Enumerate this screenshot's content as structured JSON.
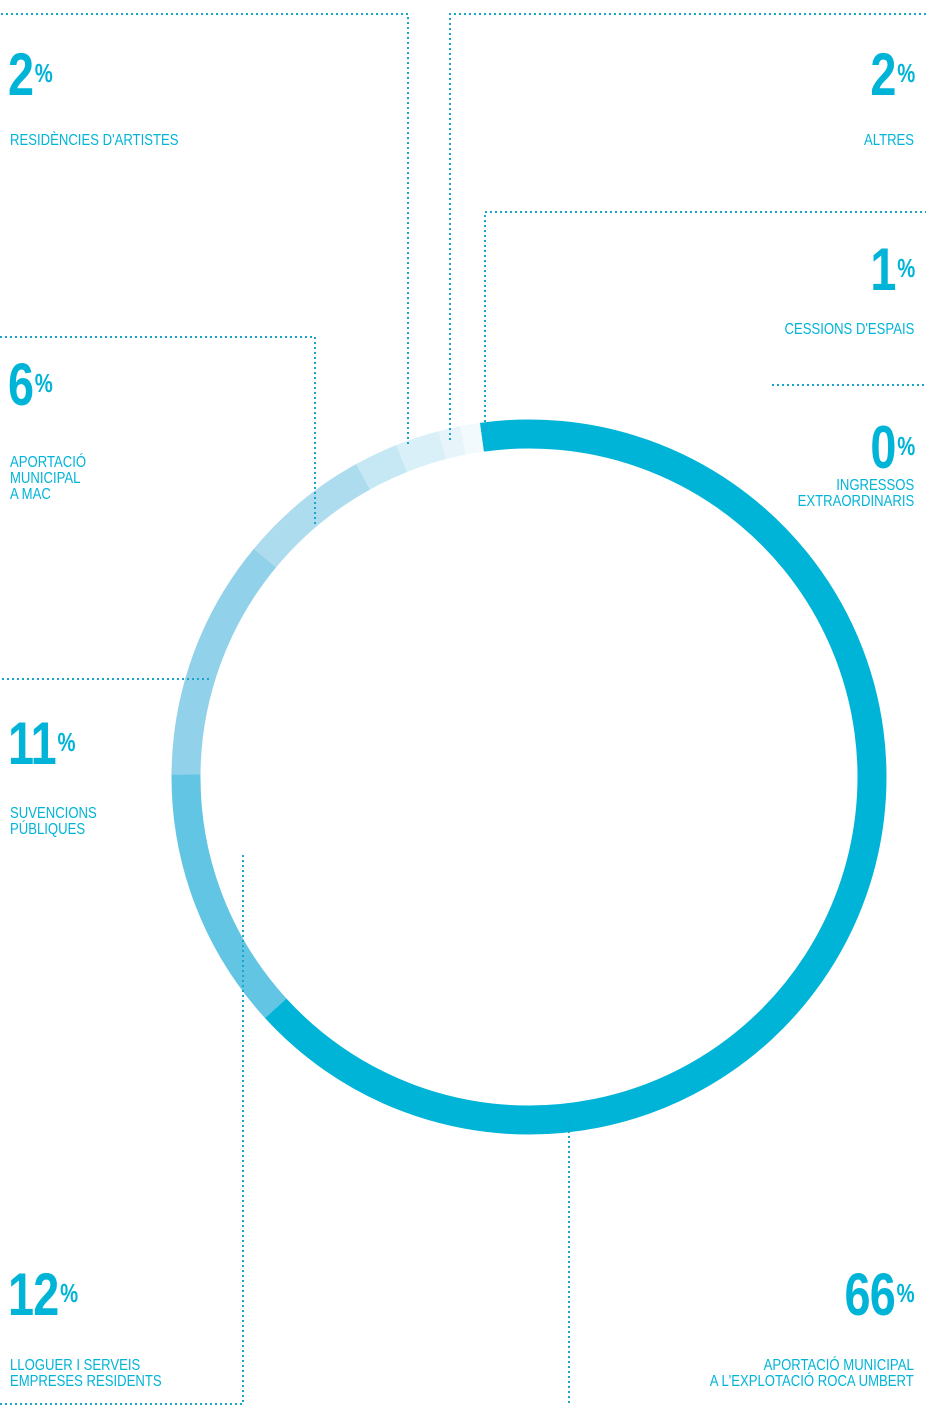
{
  "colors": {
    "accent": "#00b4d8",
    "leader": "#1aa6c9",
    "segments": [
      "#00b4d8",
      "#62c5e3",
      "#92d1ea",
      "#acdcee",
      "#c6e8f4",
      "#d9f0f8",
      "#e7f5fa",
      "#f3fafd"
    ]
  },
  "chart_data": {
    "type": "donut",
    "unit": "%",
    "categories": [
      "APORTACIÓ MUNICIPAL A L'EXPLOTACIÓ ROCA UMBERT",
      "LLOGUER I SERVEIS EMPRESES RESIDENTS",
      "SUVENCIONS PÚBLIQUES",
      "APORTACIÓ MUNICIPAL A MAC",
      "RESIDÈNCIES D'ARTISTES",
      "ALTRES",
      "CESSIONS D'ESPAIS",
      "INGRESSOS EXTRAORDINARIS"
    ],
    "values": [
      66,
      12,
      11,
      6,
      2,
      2,
      1,
      0
    ],
    "segments": [
      {
        "value_label": "66",
        "label_lines": [
          "APORTACIÓ MUNICIPAL",
          "A L'EXPLOTACIÓ ROCA UMBERT"
        ]
      },
      {
        "value_label": "12",
        "label_lines": [
          "LLOGUER I SERVEIS",
          "EMPRESES RESIDENTS"
        ]
      },
      {
        "value_label": "11",
        "label_lines": [
          "SUVENCIONS",
          "PÚBLIQUES"
        ]
      },
      {
        "value_label": "6",
        "label_lines": [
          "APORTACIÓ",
          "MUNICIPAL",
          "A MAC"
        ]
      },
      {
        "value_label": "2",
        "label_lines": [
          "RESIDÈNCIES D'ARTISTES"
        ]
      },
      {
        "value_label": "2",
        "label_lines": [
          "ALTRES"
        ]
      },
      {
        "value_label": "1",
        "label_lines": [
          "CESSIONS D'ESPAIS"
        ]
      },
      {
        "value_label": "0",
        "label_lines": [
          "INGRESSOS",
          "EXTRAORDINARIS"
        ]
      }
    ]
  }
}
